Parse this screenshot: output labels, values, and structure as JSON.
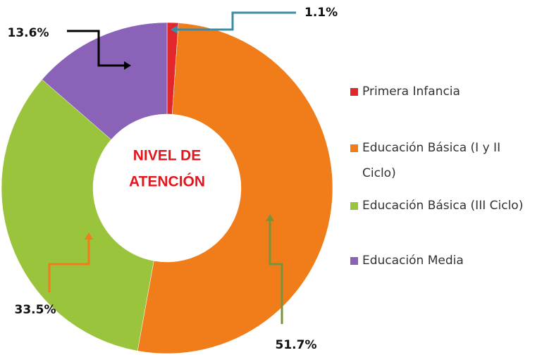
{
  "chart_data": {
    "type": "donut",
    "center_label": [
      "NIVEL DE",
      "ATENCIÓN"
    ],
    "categories": [
      "Primera Infancia",
      "Educación Básica (I y II Ciclo)",
      "Educación Básica (III Ciclo)",
      "Educación Media"
    ],
    "values": [
      1.1,
      51.7,
      33.5,
      13.6
    ],
    "value_labels": [
      "1.1%",
      "51.7%",
      "33.5%",
      "13.6%"
    ],
    "colors": [
      "#e3262b",
      "#f07d1a",
      "#9bc43d",
      "#8a63b8"
    ],
    "legend": "right"
  }
}
